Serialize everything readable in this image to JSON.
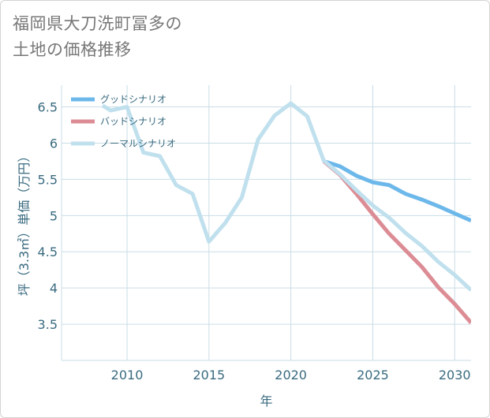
{
  "header": {
    "title_line1": "福岡県大刀洗町冨多の",
    "title_line2": "土地の価格推移"
  },
  "chart_data": {
    "type": "line",
    "xlabel": "年",
    "ylabel": "坪（3.3㎡）単価（万円）",
    "xlim": [
      2006,
      2031
    ],
    "ylim": [
      3.0,
      6.8
    ],
    "x_ticks": [
      2010,
      2015,
      2020,
      2025,
      2030
    ],
    "y_ticks": [
      3.5,
      4,
      4.5,
      5,
      5.5,
      6,
      6.5
    ],
    "grid": true,
    "legend_position": "top-left",
    "series": [
      {
        "name": "グッドシナリオ",
        "color": "#6cb8ea",
        "x": [
          2022,
          2023,
          2024,
          2025,
          2026,
          2027,
          2028,
          2029,
          2030,
          2031
        ],
        "y": [
          5.75,
          5.68,
          5.55,
          5.46,
          5.42,
          5.3,
          5.22,
          5.13,
          5.03,
          4.93
        ]
      },
      {
        "name": "バッドシナリオ",
        "color": "#dc8c94",
        "x": [
          2022,
          2023,
          2024,
          2025,
          2026,
          2027,
          2028,
          2029,
          2030,
          2031
        ],
        "y": [
          5.75,
          5.56,
          5.3,
          5.02,
          4.75,
          4.52,
          4.29,
          4.01,
          3.78,
          3.52
        ]
      },
      {
        "name": "ノーマルシナリオ",
        "color": "#c0e0ee",
        "x": [
          2008.5,
          2009,
          2010,
          2011,
          2012,
          2013,
          2014,
          2015,
          2016,
          2017,
          2018,
          2019,
          2020,
          2021,
          2022,
          2023,
          2024,
          2025,
          2026,
          2027,
          2028,
          2029,
          2030,
          2031
        ],
        "y": [
          6.52,
          6.45,
          6.5,
          5.87,
          5.82,
          5.42,
          5.3,
          4.64,
          4.9,
          5.25,
          6.05,
          6.38,
          6.55,
          6.37,
          5.76,
          5.57,
          5.35,
          5.14,
          4.97,
          4.76,
          4.58,
          4.36,
          4.18,
          3.97
        ]
      }
    ]
  }
}
